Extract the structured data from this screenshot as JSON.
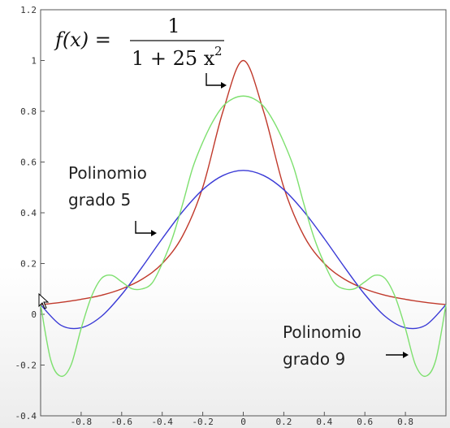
{
  "chart_data": {
    "type": "line",
    "title": "",
    "xlabel": "",
    "ylabel": "",
    "xlim": [
      -1,
      1
    ],
    "ylim": [
      -0.4,
      1.2
    ],
    "grid": false,
    "x_ticks": [
      "-0.8",
      "-0.6",
      "-0.4",
      "-0.2",
      "0",
      "0.2",
      "0.4",
      "0.6",
      "0.8"
    ],
    "x_tick_values": [
      -0.8,
      -0.6,
      -0.4,
      -0.2,
      0,
      0.2,
      0.4,
      0.6,
      0.8
    ],
    "y_ticks": [
      "-0.4",
      "-0.2",
      "0",
      "0.2",
      "0.4",
      "0.6",
      "0.8",
      "1",
      "1.2"
    ],
    "y_tick_values": [
      -0.4,
      -0.2,
      0,
      0.2,
      0.4,
      0.6,
      0.8,
      1,
      1.2
    ],
    "series": [
      {
        "key": "runge",
        "color": "#c0392b",
        "x": [
          -1,
          -0.9,
          -0.8,
          -0.7,
          -0.6,
          -0.5,
          -0.4,
          -0.3,
          -0.2,
          -0.1,
          0,
          0.1,
          0.2,
          0.3,
          0.4,
          0.5,
          0.6,
          0.7,
          0.8,
          0.9,
          1
        ],
        "y": [
          0.038,
          0.047,
          0.059,
          0.075,
          0.1,
          0.138,
          0.2,
          0.308,
          0.5,
          0.8,
          1,
          0.8,
          0.5,
          0.308,
          0.2,
          0.138,
          0.1,
          0.075,
          0.059,
          0.047,
          0.038
        ]
      },
      {
        "key": "poly5",
        "name": "Polinomio grado 5",
        "color": "#3a3ad6",
        "x": [
          -1,
          -0.9,
          -0.8,
          -0.7,
          -0.6,
          -0.5,
          -0.4,
          -0.3,
          -0.2,
          -0.1,
          0,
          0.1,
          0.2,
          0.3,
          0.4,
          0.5,
          0.6,
          0.7,
          0.8,
          0.9,
          1
        ],
        "y": [
          0.038,
          -0.043,
          -0.053,
          -0.008,
          0.078,
          0.185,
          0.298,
          0.404,
          0.491,
          0.547,
          0.567,
          0.547,
          0.491,
          0.404,
          0.298,
          0.185,
          0.078,
          -0.008,
          -0.053,
          -0.043,
          0.038
        ]
      },
      {
        "key": "poly9",
        "name": "Polinomio grado 9",
        "color": "#7ee06f",
        "x": [
          -1,
          -0.95,
          -0.9,
          -0.85,
          -0.8,
          -0.75,
          -0.7,
          -0.65,
          -0.6,
          -0.55,
          -0.5,
          -0.45,
          -0.4,
          -0.35,
          -0.3,
          -0.25,
          -0.2,
          -0.15,
          -0.1,
          -0.05,
          0,
          0.05,
          0.1,
          0.15,
          0.2,
          0.25,
          0.3,
          0.35,
          0.4,
          0.45,
          0.5,
          0.55,
          0.6,
          0.65,
          0.7,
          0.75,
          0.8,
          0.85,
          0.9,
          0.95,
          1
        ],
        "y": [
          0.038,
          -0.18,
          -0.244,
          -0.2,
          -0.056,
          0.068,
          0.141,
          0.154,
          0.128,
          0.101,
          0.1,
          0.123,
          0.2,
          0.3,
          0.432,
          0.576,
          0.678,
          0.76,
          0.82,
          0.85,
          0.86,
          0.85,
          0.82,
          0.76,
          0.678,
          0.576,
          0.432,
          0.3,
          0.2,
          0.123,
          0.1,
          0.101,
          0.128,
          0.154,
          0.141,
          0.068,
          -0.056,
          -0.2,
          -0.244,
          -0.18,
          0.038
        ]
      }
    ],
    "annotations": {
      "formula_lhs": "f(x) =",
      "formula_numerator": "1",
      "formula_denominator": "1 + 25 x",
      "formula_exponent": "2",
      "poly5_line1": "Polinomio",
      "poly5_line2": "grado 5",
      "poly9_line1": "Polinomio",
      "poly9_line2": "grado 9"
    }
  }
}
